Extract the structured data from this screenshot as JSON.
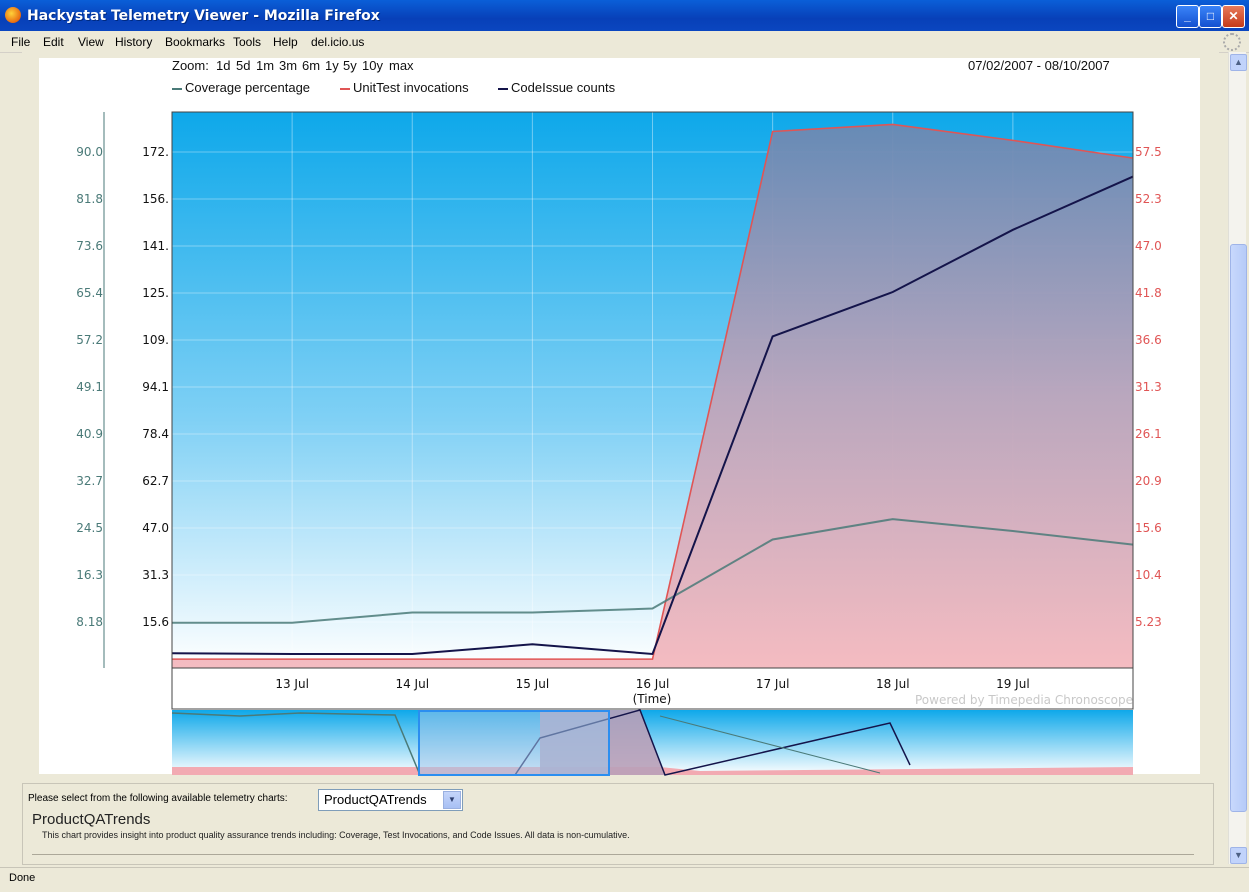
{
  "window": {
    "title": "Hackystat Telemetry Viewer - Mozilla Firefox"
  },
  "menu": [
    "File",
    "Edit",
    "View",
    "History",
    "Bookmarks",
    "Tools",
    "Help",
    "del.icio.us"
  ],
  "zoom": {
    "label": "Zoom:",
    "options": [
      "1d",
      "5d",
      "1m",
      "3m",
      "6m",
      "1y",
      "5y",
      "10y",
      "max"
    ]
  },
  "date_range": "07/02/2007 - 08/10/2007",
  "legend": [
    {
      "name": "Coverage percentage",
      "color": "#4a7a78"
    },
    {
      "name": "UnitTest invocations",
      "color": "#e05555"
    },
    {
      "name": "CodeIssue counts",
      "color": "#14144a"
    }
  ],
  "axes": {
    "left_outer_ticks": [
      "90.0",
      "81.8",
      "73.6",
      "65.4",
      "57.2",
      "49.1",
      "40.9",
      "32.7",
      "24.5",
      "16.3",
      "8.18"
    ],
    "left_inner_ticks": [
      "172.",
      "156.",
      "141.",
      "125.",
      "109.",
      "94.1",
      "78.4",
      "62.7",
      "47.0",
      "31.3",
      "15.6"
    ],
    "right_ticks": [
      "57.5",
      "52.3",
      "47.0",
      "41.8",
      "36.6",
      "31.3",
      "26.1",
      "20.9",
      "15.6",
      "10.4",
      "5.23"
    ],
    "x_ticks": [
      "13 Jul",
      "14 Jul",
      "15 Jul",
      "16 Jul",
      "17 Jul",
      "18 Jul",
      "19 Jul"
    ],
    "x_label": "(Time)"
  },
  "watermark": "Powered by Timepedia Chronoscope",
  "chart_data": {
    "type": "line",
    "x": [
      "12 Jul",
      "13 Jul",
      "14 Jul",
      "15 Jul",
      "16 Jul",
      "17 Jul",
      "18 Jul",
      "19 Jul",
      "20 Jul"
    ],
    "series": [
      {
        "name": "Coverage percentage",
        "axis": "left_outer",
        "values": [
          8.0,
          8.0,
          9.8,
          9.8,
          10.5,
          22.7,
          26.3,
          24.2,
          21.8
        ]
      },
      {
        "name": "UnitTest invocations",
        "axis": "right",
        "values": [
          1.0,
          1.0,
          1.0,
          1.0,
          1.0,
          60.5,
          61.3,
          59.5,
          57.5
        ]
      },
      {
        "name": "CodeIssue counts",
        "axis": "left_inner",
        "values": [
          5,
          -2,
          2,
          8,
          -1,
          112,
          127,
          148,
          166
        ]
      }
    ],
    "ylim_left_outer": [
      0,
      98.2
    ],
    "ylim_left_inner": [
      0,
      187.8
    ],
    "ylim_right": [
      0,
      62.7
    ],
    "xlabel": "(Time)",
    "grid": true
  },
  "footer": {
    "select_prompt": "Please select from the following available telemetry charts:",
    "selected_chart": "ProductQATrends",
    "chart_title": "ProductQATrends",
    "chart_description": "This chart provides insight into product quality assurance trends including: Coverage, Test Invocations, and Code Issues. All data is non-cumulative."
  },
  "status": "Done"
}
